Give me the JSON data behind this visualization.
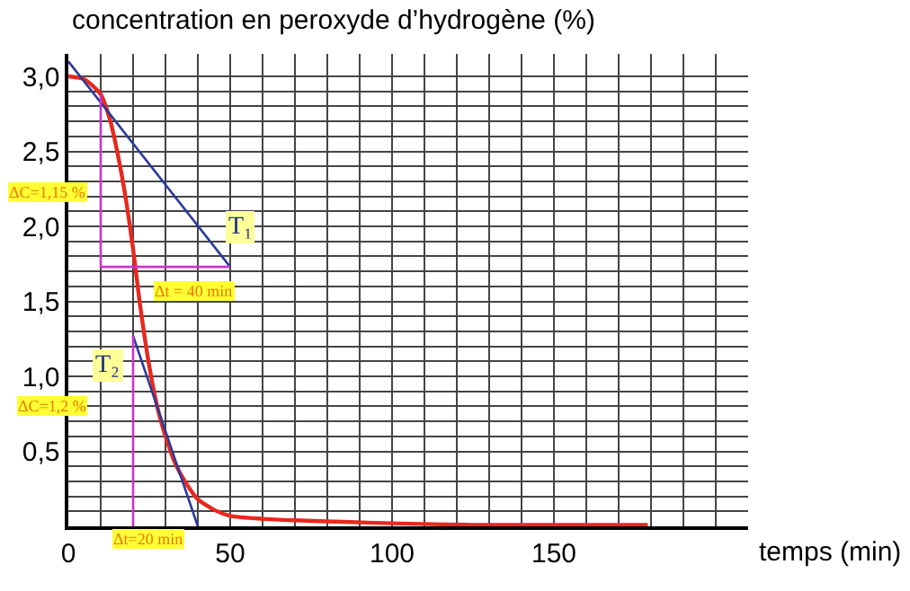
{
  "chart_data": {
    "type": "line",
    "ylabel": "concentration en peroxyde d’hydrogène (%)",
    "xlabel": "temps (min)",
    "xlim": [
      0,
      210
    ],
    "ylim": [
      0,
      3.15
    ],
    "xticks": [
      0,
      {
        "value": 10,
        "label": null
      },
      {
        "value": 20,
        "label": null
      },
      {
        "value": 30,
        "label": null
      },
      {
        "value": 40,
        "label": null
      },
      50,
      {
        "value": 60,
        "label": null
      },
      {
        "value": 70,
        "label": null
      },
      {
        "value": 80,
        "label": null
      },
      {
        "value": 90,
        "label": null
      },
      100,
      {
        "value": 110,
        "label": null
      },
      {
        "value": 120,
        "label": null
      },
      {
        "value": 130,
        "label": null
      },
      {
        "value": 140,
        "label": null
      },
      150,
      {
        "value": 160,
        "label": null
      },
      {
        "value": 170,
        "label": null
      },
      {
        "value": 180,
        "label": null
      },
      {
        "value": 190,
        "label": null
      },
      {
        "value": 200,
        "label": null
      }
    ],
    "yticks": [
      {
        "value": 0.1,
        "label": null
      },
      {
        "value": 0.2,
        "label": null
      },
      {
        "value": 0.3,
        "label": null
      },
      {
        "value": 0.4,
        "label": null
      },
      {
        "value": 0.5,
        "label": "0,5"
      },
      {
        "value": 0.6,
        "label": null
      },
      {
        "value": 0.7,
        "label": null
      },
      {
        "value": 0.8,
        "label": null
      },
      {
        "value": 0.9,
        "label": null
      },
      {
        "value": 1.0,
        "label": "1,0"
      },
      {
        "value": 1.1,
        "label": null
      },
      {
        "value": 1.2,
        "label": null
      },
      {
        "value": 1.3,
        "label": null
      },
      {
        "value": 1.4,
        "label": null
      },
      {
        "value": 1.5,
        "label": "1,5"
      },
      {
        "value": 1.6,
        "label": null
      },
      {
        "value": 1.7,
        "label": null
      },
      {
        "value": 1.8,
        "label": null
      },
      {
        "value": 1.9,
        "label": null
      },
      {
        "value": 2.0,
        "label": "2,0"
      },
      {
        "value": 2.1,
        "label": null
      },
      {
        "value": 2.2,
        "label": null
      },
      {
        "value": 2.3,
        "label": null
      },
      {
        "value": 2.4,
        "label": null
      },
      {
        "value": 2.5,
        "label": "2,5"
      },
      {
        "value": 2.6,
        "label": null
      },
      {
        "value": 2.7,
        "label": null
      },
      {
        "value": 2.8,
        "label": null
      },
      {
        "value": 2.9,
        "label": null
      },
      {
        "value": 3.0,
        "label": "3,0"
      }
    ],
    "grid": true,
    "marker": "none",
    "line_style": "solid",
    "series": [
      {
        "color": "#e8281e",
        "x": [
          0,
          5,
          10,
          13,
          16,
          18,
          20,
          22,
          24,
          26,
          28,
          30,
          33,
          36,
          40,
          45,
          50,
          60,
          70,
          85,
          100,
          125,
          150,
          179
        ],
        "values": [
          3.0,
          2.98,
          2.88,
          2.7,
          2.4,
          2.15,
          1.85,
          1.5,
          1.2,
          0.95,
          0.75,
          0.6,
          0.42,
          0.3,
          0.18,
          0.11,
          0.07,
          0.05,
          0.04,
          0.03,
          0.02,
          0.01,
          0.01,
          0.01
        ]
      },
      {
        "color": "#2b3a9c",
        "x": [
          0,
          50
        ],
        "values": [
          3.1,
          1.73
        ]
      },
      {
        "color": "#2b3a9c",
        "x": [
          20,
          40
        ],
        "values": [
          1.27,
          0.0
        ]
      },
      {
        "color": "#cc33cc",
        "x": [
          10,
          10,
          50
        ],
        "values": [
          2.88,
          1.73,
          1.73
        ]
      },
      {
        "color": "#cc33cc",
        "x": [
          20,
          20
        ],
        "values": [
          1.27,
          0.0
        ]
      }
    ],
    "annotations": [
      {
        "text": "T₁",
        "x": 53,
        "y": 2.0
      },
      {
        "text": "T₂",
        "x": 12,
        "y": 1.07
      },
      "ΔC=1,15 %",
      "Δt = 40 min",
      "ΔC=1,2 %",
      "Δt=20 min"
    ]
  }
}
